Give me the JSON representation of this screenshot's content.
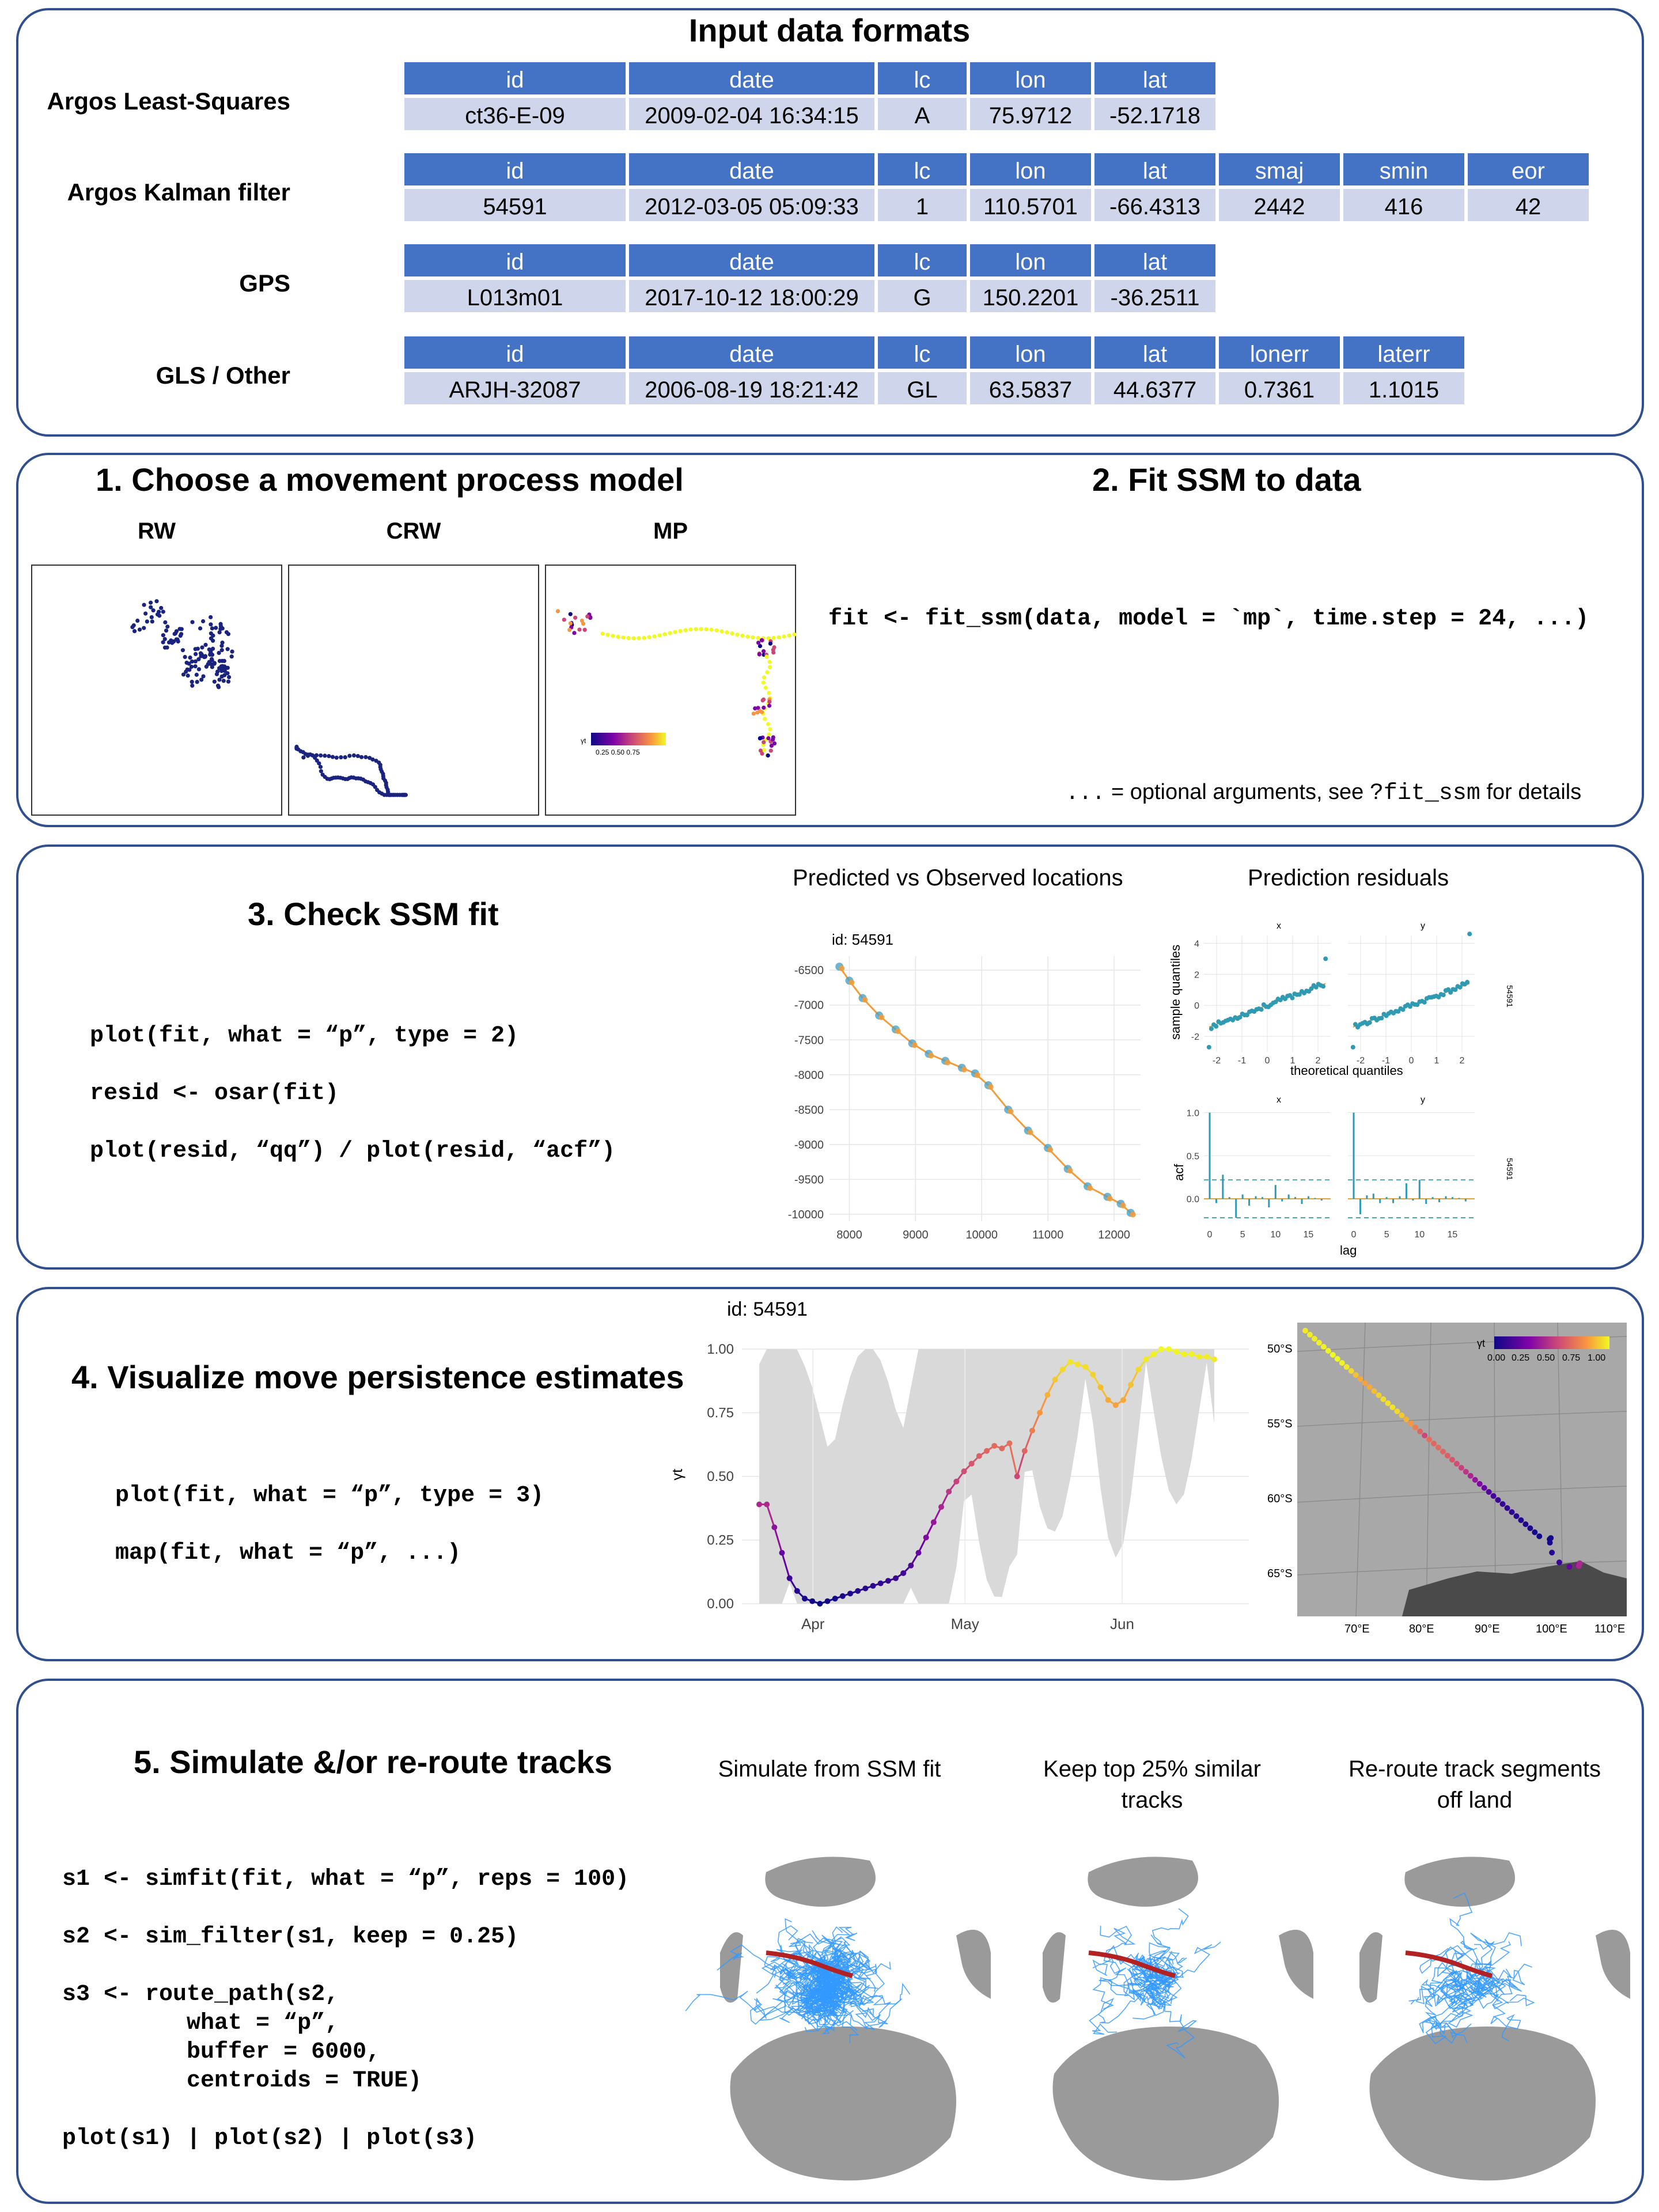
{
  "input": {
    "title": "Input data formats",
    "tables": [
      {
        "label": "Argos Least-Squares",
        "headers": [
          "id",
          "date",
          "lc",
          "lon",
          "lat"
        ],
        "values": [
          "ct36-E-09",
          "2009-02-04 16:34:15",
          "A",
          "75.9712",
          "-52.1718"
        ]
      },
      {
        "label": "Argos Kalman filter",
        "headers": [
          "id",
          "date",
          "lc",
          "lon",
          "lat",
          "smaj",
          "smin",
          "eor"
        ],
        "values": [
          "54591",
          "2012-03-05 05:09:33",
          "1",
          "110.5701",
          "-66.4313",
          "2442",
          "416",
          "42"
        ]
      },
      {
        "label": "GPS",
        "headers": [
          "id",
          "date",
          "lc",
          "lon",
          "lat"
        ],
        "values": [
          "L013m01",
          "2017-10-12 18:00:29",
          "G",
          "150.2201",
          "-36.2511"
        ]
      },
      {
        "label": "GLS / Other",
        "headers": [
          "id",
          "date",
          "lc",
          "lon",
          "lat",
          "lonerr",
          "laterr"
        ],
        "values": [
          "ARJH-32087",
          "2006-08-19 18:21:42",
          "GL",
          "63.5837",
          "44.6377",
          "0.7361",
          "1.1015"
        ]
      }
    ]
  },
  "step1": {
    "title": "1. Choose a movement process model",
    "models": [
      "RW",
      "CRW",
      "MP"
    ],
    "colorbar_symbol": "γt",
    "colorbar_ticks": "0.25 0.50 0.75"
  },
  "step2": {
    "title": "2. Fit SSM to data",
    "code": "fit <- fit_ssm(data, model = `mp`, time.step = 24, ...)",
    "note_dots": "...",
    "note_text": "= optional arguments, see",
    "note_code": "?fit_ssm",
    "note_tail": "for details"
  },
  "step3": {
    "title": "3. Check SSM fit",
    "code_lines": [
      "plot(fit, what = “p”, type = 2)",
      "resid <- osar(fit)",
      "plot(resid, “qq”) / plot(resid, “acf”)"
    ],
    "plot1_title": "Predicted vs Observed locations",
    "plot1_id": "id: 54591",
    "plot2_title": "Prediction residuals",
    "qq_ylabel": "sample quantiles",
    "qq_xlabel": "theoretical quantiles",
    "acf_ylabel": "acf",
    "acf_xlabel": "lag",
    "facet_x": "x",
    "facet_y": "y",
    "strip_id": "54591"
  },
  "step4": {
    "title": "4. Visualize move persistence estimates",
    "code_lines": [
      "plot(fit, what = “p”, type = 3)",
      "map(fit, what = “p”, ...)"
    ],
    "plot_id": "id: 54591",
    "y_symbol": "γt",
    "map_legend_symbol": "γt",
    "map_legend_ticks": [
      "0.00",
      "0.25",
      "0.50",
      "0.75",
      "1.00"
    ],
    "map_lat_labels": [
      "50°S",
      "55°S",
      "60°S",
      "65°S"
    ],
    "map_lon_labels": [
      "70°E",
      "80°E",
      "90°E",
      "100°E",
      "110°E"
    ]
  },
  "step5": {
    "title": "5. Simulate &/or re-route tracks",
    "code_lines": [
      "s1 <- simfit(fit, what = “p”, reps = 100)",
      "s2 <- sim_filter(s1, keep = 0.25)",
      "s3 <- route_path(s2,",
      "         what = “p”,",
      "         buffer = 6000,",
      "         centroids = TRUE)",
      "plot(s1) | plot(s2) | plot(s3)"
    ],
    "globe_titles": [
      [
        "Simulate from SSM fit",
        ""
      ],
      [
        "Keep top 25% similar",
        "tracks"
      ],
      [
        "Re-route track segments",
        "off land"
      ]
    ]
  },
  "chart_data": [
    {
      "type": "scatter",
      "title": "Predicted vs Observed locations",
      "subtitle": "id: 54591",
      "xlim": [
        7700,
        12400
      ],
      "ylim": [
        -10100,
        -6300
      ],
      "x_ticks": [
        8000,
        9000,
        10000,
        11000,
        12000
      ],
      "y_ticks": [
        -6500,
        -7000,
        -7500,
        -8000,
        -8500,
        -9000,
        -9500,
        -10000
      ],
      "series": [
        {
          "values_x": [
            7850,
            8000,
            8200,
            8450,
            8700,
            8950,
            9200,
            9450,
            9700,
            9900,
            10100,
            10400,
            10700,
            11000,
            11300,
            11600,
            11900,
            12100,
            12250
          ],
          "values_y": [
            -6450,
            -6650,
            -6900,
            -7150,
            -7350,
            -7550,
            -7700,
            -7800,
            -7900,
            -7980,
            -8150,
            -8500,
            -8800,
            -9050,
            -9350,
            -9600,
            -9750,
            -9850,
            -9980
          ]
        }
      ]
    },
    {
      "type": "scatter",
      "title": "Prediction residuals",
      "xlabel": "theoretical quantiles",
      "ylabel": "sample quantiles",
      "x_ticks": [
        -2,
        -1,
        0,
        1,
        2
      ],
      "y_ticks": [
        -2,
        0,
        2,
        4
      ],
      "facets": [
        "x",
        "y"
      ]
    },
    {
      "type": "bar",
      "xlabel": "lag",
      "ylabel": "acf",
      "x_ticks": [
        0,
        5,
        10,
        15
      ],
      "y_ticks": [
        0.0,
        0.5,
        1.0
      ],
      "facets": [
        "x",
        "y"
      ],
      "series": [
        {
          "name": "x",
          "values": [
            1.0,
            -0.05,
            0.28,
            0.02,
            -0.22,
            0.05,
            -0.08,
            0.03,
            0.02,
            -0.1,
            0.16,
            -0.03,
            0.05,
            0.02,
            -0.06,
            0.03,
            0.01,
            -0.02
          ]
        },
        {
          "name": "y",
          "values": [
            1.0,
            -0.18,
            0.04,
            0.06,
            -0.05,
            0.02,
            -0.05,
            0.03,
            0.18,
            -0.02,
            0.22,
            -0.06,
            0.02,
            -0.04,
            0.03,
            0.02,
            0.01,
            -0.03
          ]
        }
      ]
    },
    {
      "type": "line",
      "subtitle": "id: 54591",
      "ylabel": "γt",
      "x_labels": [
        "Apr",
        "May",
        "Jun"
      ],
      "y_ticks": [
        0.0,
        0.25,
        0.5,
        0.75,
        1.0
      ],
      "ylim": [
        0,
        1
      ],
      "values": [
        0.39,
        0.39,
        0.3,
        0.2,
        0.1,
        0.05,
        0.02,
        0.01,
        0.0,
        0.01,
        0.02,
        0.03,
        0.04,
        0.05,
        0.06,
        0.07,
        0.08,
        0.09,
        0.1,
        0.12,
        0.15,
        0.2,
        0.26,
        0.32,
        0.38,
        0.44,
        0.48,
        0.52,
        0.55,
        0.58,
        0.6,
        0.62,
        0.61,
        0.63,
        0.5,
        0.6,
        0.68,
        0.75,
        0.82,
        0.88,
        0.92,
        0.95,
        0.94,
        0.93,
        0.9,
        0.85,
        0.8,
        0.78,
        0.8,
        0.86,
        0.92,
        0.96,
        0.98,
        1.0,
        1.0,
        0.99,
        0.98,
        0.98,
        0.97,
        0.97,
        0.96
      ]
    }
  ]
}
